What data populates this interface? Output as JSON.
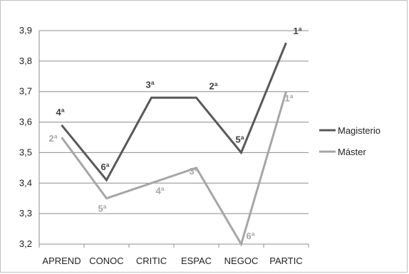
{
  "chart_data": {
    "type": "line",
    "title": "",
    "xlabel": "",
    "ylabel": "",
    "categories": [
      "APREND",
      "CONOC",
      "CRITIC",
      "ESPAC",
      "NEGOC",
      "PARTIC"
    ],
    "ylim": [
      3.2,
      3.9
    ],
    "yticks": [
      "3,2",
      "3,3",
      "3,4",
      "3,5",
      "3,6",
      "3,7",
      "3,8",
      "3,9"
    ],
    "yticks_values": [
      3.2,
      3.3,
      3.4,
      3.5,
      3.6,
      3.7,
      3.8,
      3.9
    ],
    "grid": true,
    "legend_position": "right",
    "series": [
      {
        "name": "Magisterio",
        "color": "#595959",
        "label_color": "#404040",
        "values": [
          3.59,
          3.41,
          3.68,
          3.68,
          3.5,
          3.86
        ],
        "labels": [
          "4ª",
          "6ª",
          "3ª",
          "2ª",
          "5ª",
          "1ª"
        ]
      },
      {
        "name": "Máster",
        "color": "#a6a6a6",
        "label_color": "#a6a6a6",
        "values": [
          3.55,
          3.35,
          3.4,
          3.45,
          3.2,
          3.7
        ],
        "labels": [
          "2ª",
          "5ª",
          "4ª",
          "3ª",
          "6ª",
          "1ª"
        ]
      }
    ]
  }
}
